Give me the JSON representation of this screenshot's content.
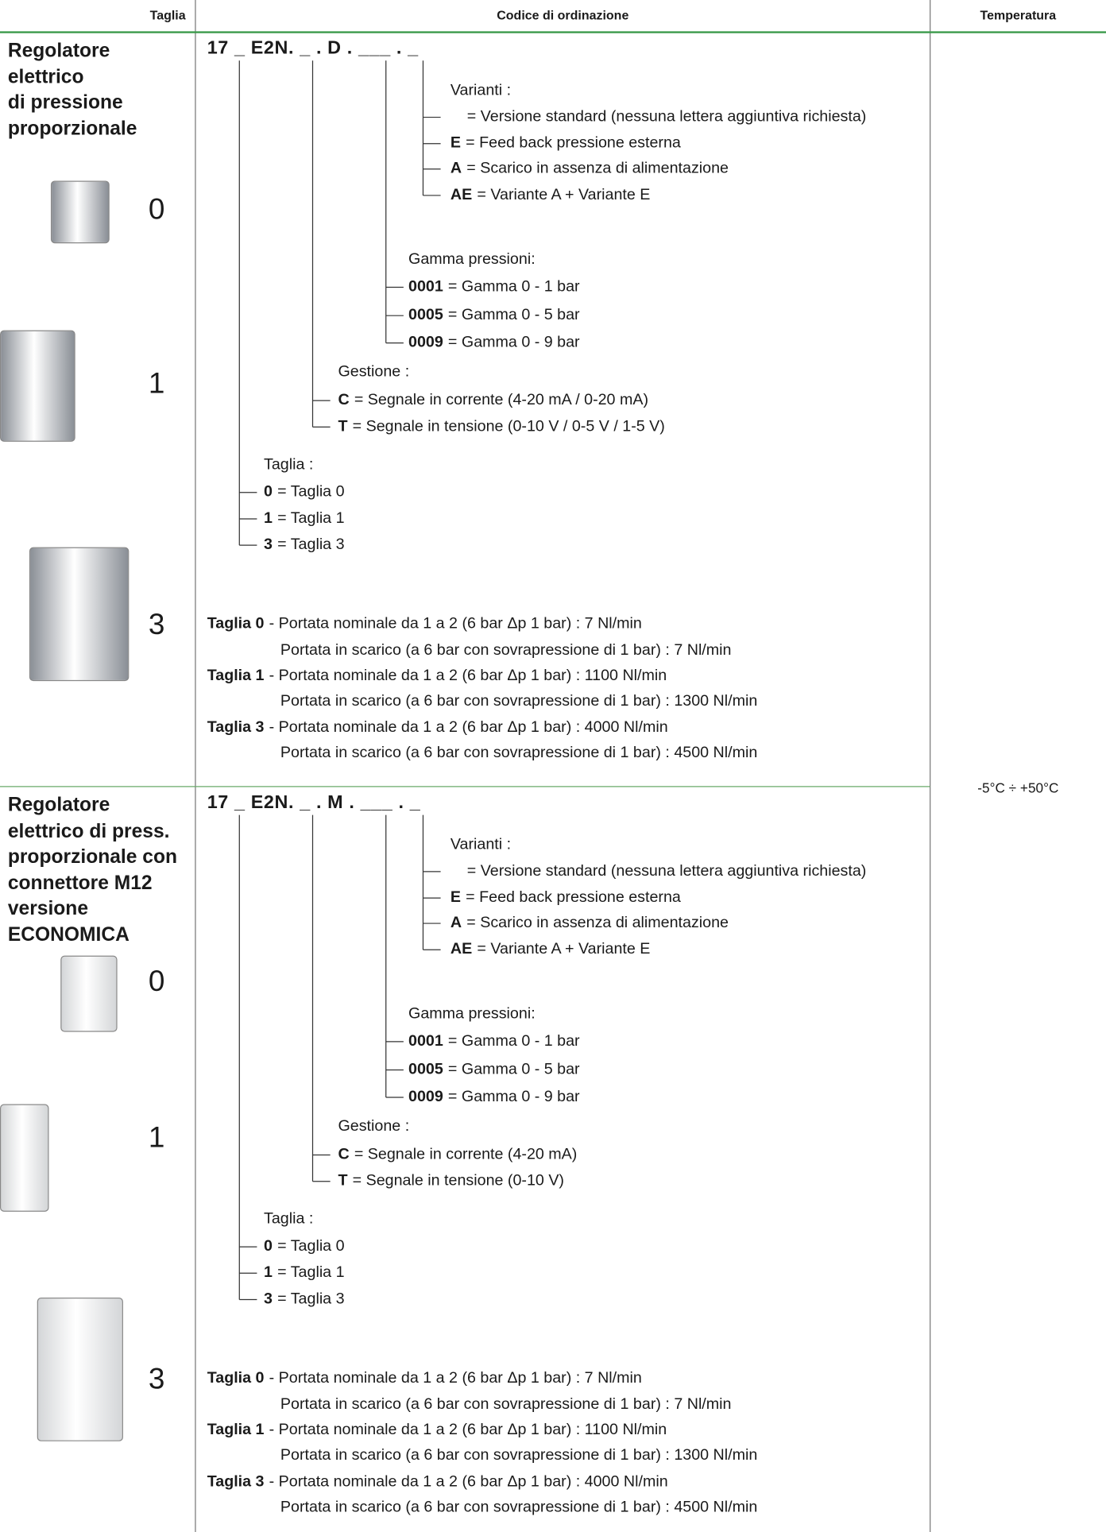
{
  "header": {
    "size": "Taglia",
    "code": "Codice di ordinazione",
    "temperature": "Temperatura"
  },
  "temperature": "-5°C ÷ +50°C",
  "sections": [
    {
      "title": [
        "Regolatore",
        "elettrico",
        "di pressione",
        "proporzionale"
      ],
      "sizes": [
        "0",
        "1",
        "3"
      ],
      "code": "17 _ E2N. _ . D . ___ . _",
      "variants": {
        "label": "Varianti :",
        "items": [
          {
            "text": "= Versione standard (nessuna lettera aggiuntiva richiesta)"
          },
          {
            "key": "E",
            "text": "= Feed back pressione esterna"
          },
          {
            "key": "A",
            "text": "= Scarico in assenza di alimentazione"
          },
          {
            "key": "AE",
            "text": "= Variante A + Variante E"
          }
        ]
      },
      "pressure": {
        "label": "Gamma pressioni:",
        "items": [
          {
            "key": "0001",
            "text": "= Gamma 0 - 1 bar"
          },
          {
            "key": "0005",
            "text": "= Gamma 0 - 5 bar"
          },
          {
            "key": "0009",
            "text": "= Gamma 0 - 9 bar"
          }
        ]
      },
      "control": {
        "label": "Gestione :",
        "items": [
          {
            "key": "C",
            "text": "= Segnale in corrente (4-20 mA / 0-20 mA)"
          },
          {
            "key": "T",
            "text": "= Segnale in tensione (0-10 V / 0-5 V / 1-5 V)"
          }
        ]
      },
      "size_codes": {
        "label": "Taglia :",
        "items": [
          {
            "key": "0",
            "text": "= Taglia 0"
          },
          {
            "key": "1",
            "text": "= Taglia 1"
          },
          {
            "key": "3",
            "text": "= Taglia 3"
          }
        ]
      },
      "flows": [
        {
          "key": "Taglia 0",
          "text": "- Portata nominale da 1 a 2 (6 bar Δp 1 bar) : 7 Nl/min"
        },
        {
          "text": "Portata in scarico (a 6 bar con sovrapressione di 1 bar) : 7 Nl/min"
        },
        {
          "key": "Taglia 1",
          "text": "- Portata nominale da 1 a 2 (6 bar Δp 1 bar) : 1100 Nl/min"
        },
        {
          "text": "Portata in scarico (a 6 bar con sovrapressione di 1 bar) : 1300 Nl/min"
        },
        {
          "key": "Taglia 3",
          "text": "- Portata nominale da 1 a 2 (6 bar Δp 1 bar) : 4000 Nl/min"
        },
        {
          "text": "Portata in scarico (a 6 bar con sovrapressione di 1 bar) : 4500 Nl/min"
        }
      ]
    },
    {
      "title": [
        "Regolatore",
        "elettrico di press.",
        "proporzionale con",
        "connettore M12",
        "versione",
        "ECONOMICA"
      ],
      "sizes": [
        "0",
        "1",
        "3"
      ],
      "code": "17 _ E2N. _ . M . ___ . _",
      "variants": {
        "label": "Varianti :",
        "items": [
          {
            "text": "= Versione standard (nessuna lettera aggiuntiva richiesta)"
          },
          {
            "key": "E",
            "text": "= Feed back pressione esterna"
          },
          {
            "key": "A",
            "text": "= Scarico in assenza di alimentazione"
          },
          {
            "key": "AE",
            "text": "= Variante A + Variante E"
          }
        ]
      },
      "pressure": {
        "label": "Gamma pressioni:",
        "items": [
          {
            "key": "0001",
            "text": "= Gamma 0 - 1 bar"
          },
          {
            "key": "0005",
            "text": "= Gamma 0 - 5 bar"
          },
          {
            "key": "0009",
            "text": "= Gamma 0 - 9 bar"
          }
        ]
      },
      "control": {
        "label": "Gestione :",
        "items": [
          {
            "key": "C",
            "text": "= Segnale in corrente (4-20 mA)"
          },
          {
            "key": "T",
            "text": "= Segnale in tensione (0-10 V)"
          }
        ]
      },
      "size_codes": {
        "label": "Taglia :",
        "items": [
          {
            "key": "0",
            "text": "= Taglia 0"
          },
          {
            "key": "1",
            "text": "= Taglia 1"
          },
          {
            "key": "3",
            "text": "= Taglia 3"
          }
        ]
      },
      "flows": [
        {
          "key": "Taglia 0",
          "text": "- Portata nominale da 1 a 2 (6 bar Δp 1 bar) : 7 Nl/min"
        },
        {
          "text": "Portata in scarico (a 6 bar con sovrapressione di 1 bar) : 7 Nl/min"
        },
        {
          "key": "Taglia 1",
          "text": "- Portata nominale da 1 a 2 (6 bar Δp 1 bar) : 1100 Nl/min"
        },
        {
          "text": "Portata in scarico (a 6 bar con sovrapressione di 1 bar) : 1300 Nl/min"
        },
        {
          "key": "Taglia 3",
          "text": "- Portata nominale da 1 a 2 (6 bar Δp 1 bar) : 4000 Nl/min"
        },
        {
          "text": "Portata in scarico (a 6 bar con sovrapressione di 1 bar) : 4500 Nl/min"
        }
      ]
    }
  ]
}
